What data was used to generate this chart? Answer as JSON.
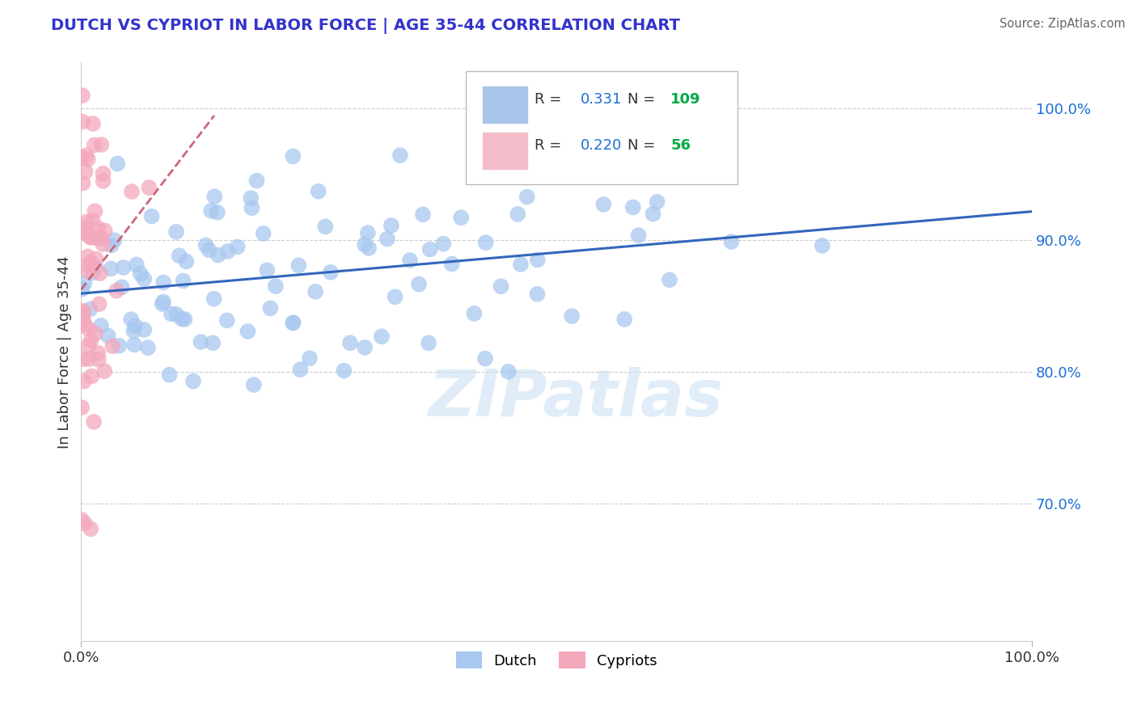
{
  "title": "DUTCH VS CYPRIOT IN LABOR FORCE | AGE 35-44 CORRELATION CHART",
  "source": "Source: ZipAtlas.com",
  "ylabel": "In Labor Force | Age 35-44",
  "xlim": [
    0.0,
    1.0
  ],
  "ylim": [
    0.595,
    1.035
  ],
  "title_color": "#3333cc",
  "source_color": "#666666",
  "watermark": "ZIPatlas",
  "dutch_R": 0.331,
  "dutch_N": 109,
  "cypriot_R": 0.22,
  "cypriot_N": 56,
  "dutch_color": "#a8c8f0",
  "cypriot_color": "#f4a8bc",
  "dutch_line_color": "#3366bb",
  "cypriot_line_color": "#cc6677",
  "legend_box_color_dutch": "#a8c4e8",
  "legend_box_color_cypriot": "#f4bcc8",
  "background_color": "#ffffff",
  "grid_color": "#cccccc",
  "legend_R_color": "#1a6fd4",
  "legend_N_color": "#00aa44",
  "dutch_seed": 12345,
  "cypriot_seed": 9876
}
